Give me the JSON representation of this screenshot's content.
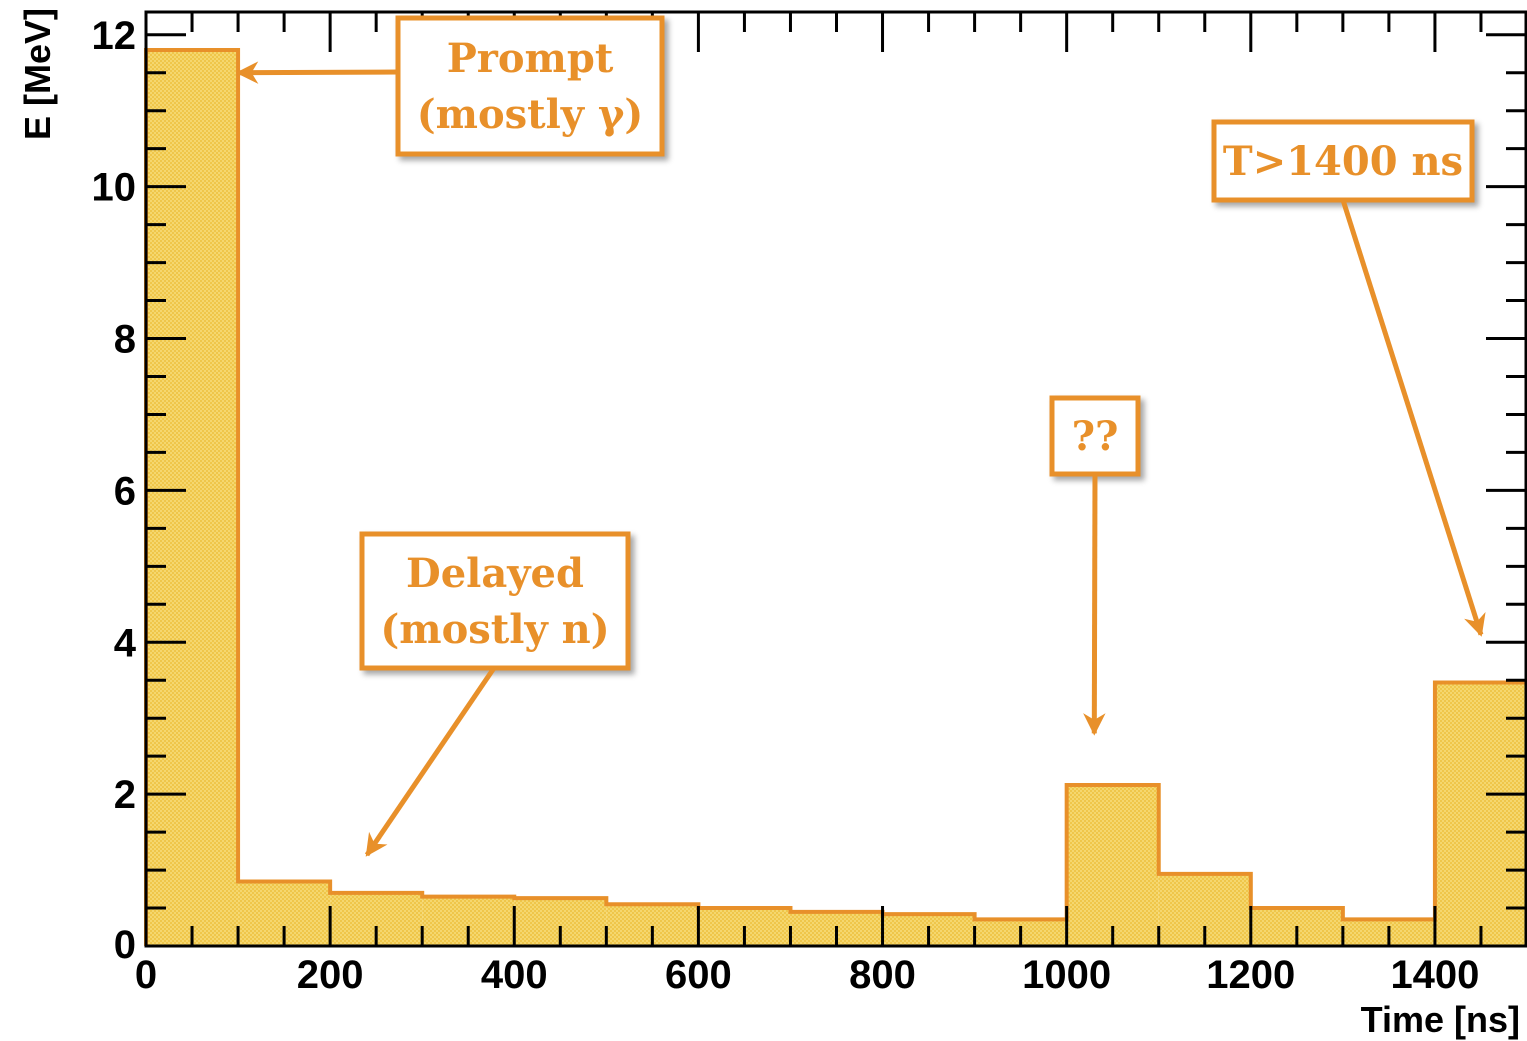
{
  "chart_data": {
    "type": "bar",
    "title": "",
    "xlabel": "Time [ns]",
    "ylabel": "E [MeV]",
    "xlim": [
      0,
      1500
    ],
    "ylim": [
      0,
      12.3
    ],
    "x_ticks": [
      "0",
      "200",
      "400",
      "600",
      "800",
      "1000",
      "1200",
      "1400"
    ],
    "y_ticks": [
      "0",
      "2",
      "4",
      "6",
      "8",
      "10",
      "12"
    ],
    "bin_edges": [
      0,
      100,
      200,
      300,
      400,
      500,
      600,
      700,
      800,
      900,
      1000,
      1100,
      1200,
      1300,
      1400,
      1500
    ],
    "values": [
      11.8,
      0.85,
      0.7,
      0.65,
      0.63,
      0.55,
      0.5,
      0.45,
      0.42,
      0.35,
      2.12,
      0.95,
      0.5,
      0.35,
      3.47
    ],
    "grid": false,
    "colors": {
      "fill": "#f5d76e",
      "stroke": "#e8902a",
      "annotation": "#e8902a"
    },
    "annotations": [
      {
        "lines": [
          "Prompt",
          "(mostly γ)"
        ],
        "target": [
          100,
          11.5
        ]
      },
      {
        "lines": [
          "Delayed",
          "(mostly n)"
        ],
        "target": [
          240,
          1.2
        ]
      },
      {
        "lines": [
          "??"
        ],
        "target": [
          1030,
          2.8
        ]
      },
      {
        "lines": [
          "T>1400 ns"
        ],
        "target": [
          1450,
          4.1
        ]
      }
    ]
  }
}
